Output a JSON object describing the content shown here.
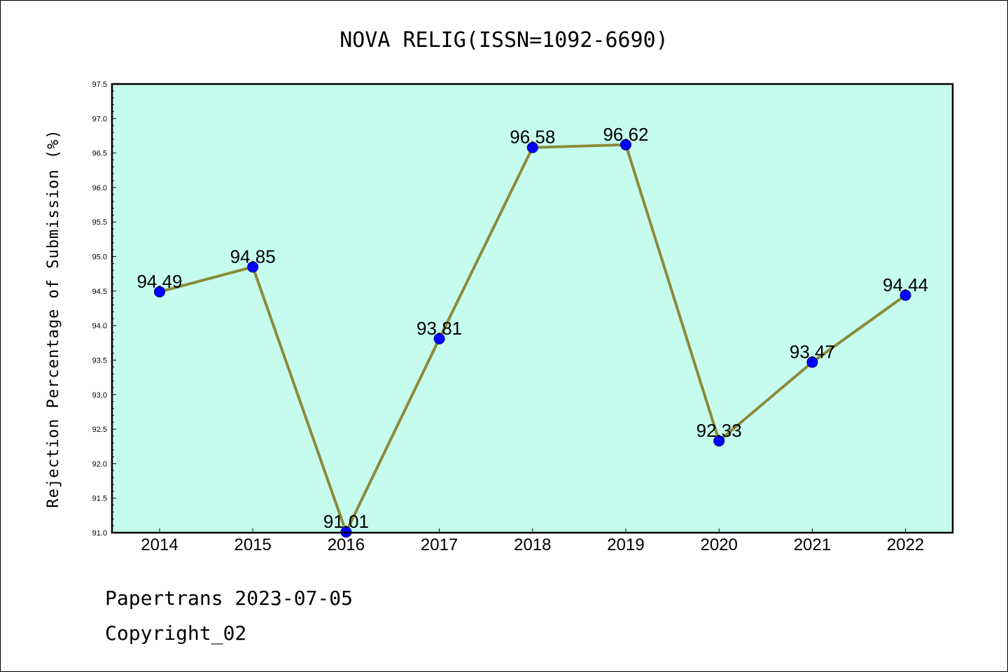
{
  "colors": {
    "plot_background": "#c6fcee",
    "line": "#8b8b3a",
    "marker": "#0000ff",
    "axis": "#000000"
  },
  "chart_data": {
    "type": "line",
    "title": "NOVA RELIG(ISSN=1092-6690)",
    "xlabel": "",
    "ylabel": "Rejection Percentage of Submission (%)",
    "categories": [
      "2014",
      "2015",
      "2016",
      "2017",
      "2018",
      "2019",
      "2020",
      "2021",
      "2022"
    ],
    "series": [
      {
        "values": [
          94.49,
          94.85,
          91.01,
          93.81,
          96.58,
          96.62,
          92.33,
          93.47,
          94.44
        ]
      }
    ],
    "data_labels": [
      "94.49",
      "94.85",
      "91.01",
      "93.81",
      "96.58",
      "96.62",
      "92.33",
      "93.47",
      "94.44"
    ],
    "ylim": [
      91.0,
      97.5
    ],
    "yticks": [
      "91.0",
      "91.5",
      "92.0",
      "92.5",
      "93.0",
      "93.5",
      "94.0",
      "94.5",
      "95.0",
      "95.5",
      "96.0",
      "96.5",
      "97.0",
      "97.5"
    ],
    "grid": false,
    "legend": "none"
  },
  "footer": {
    "line1": "Papertrans 2023-07-05",
    "line2": "Copyright_02"
  }
}
